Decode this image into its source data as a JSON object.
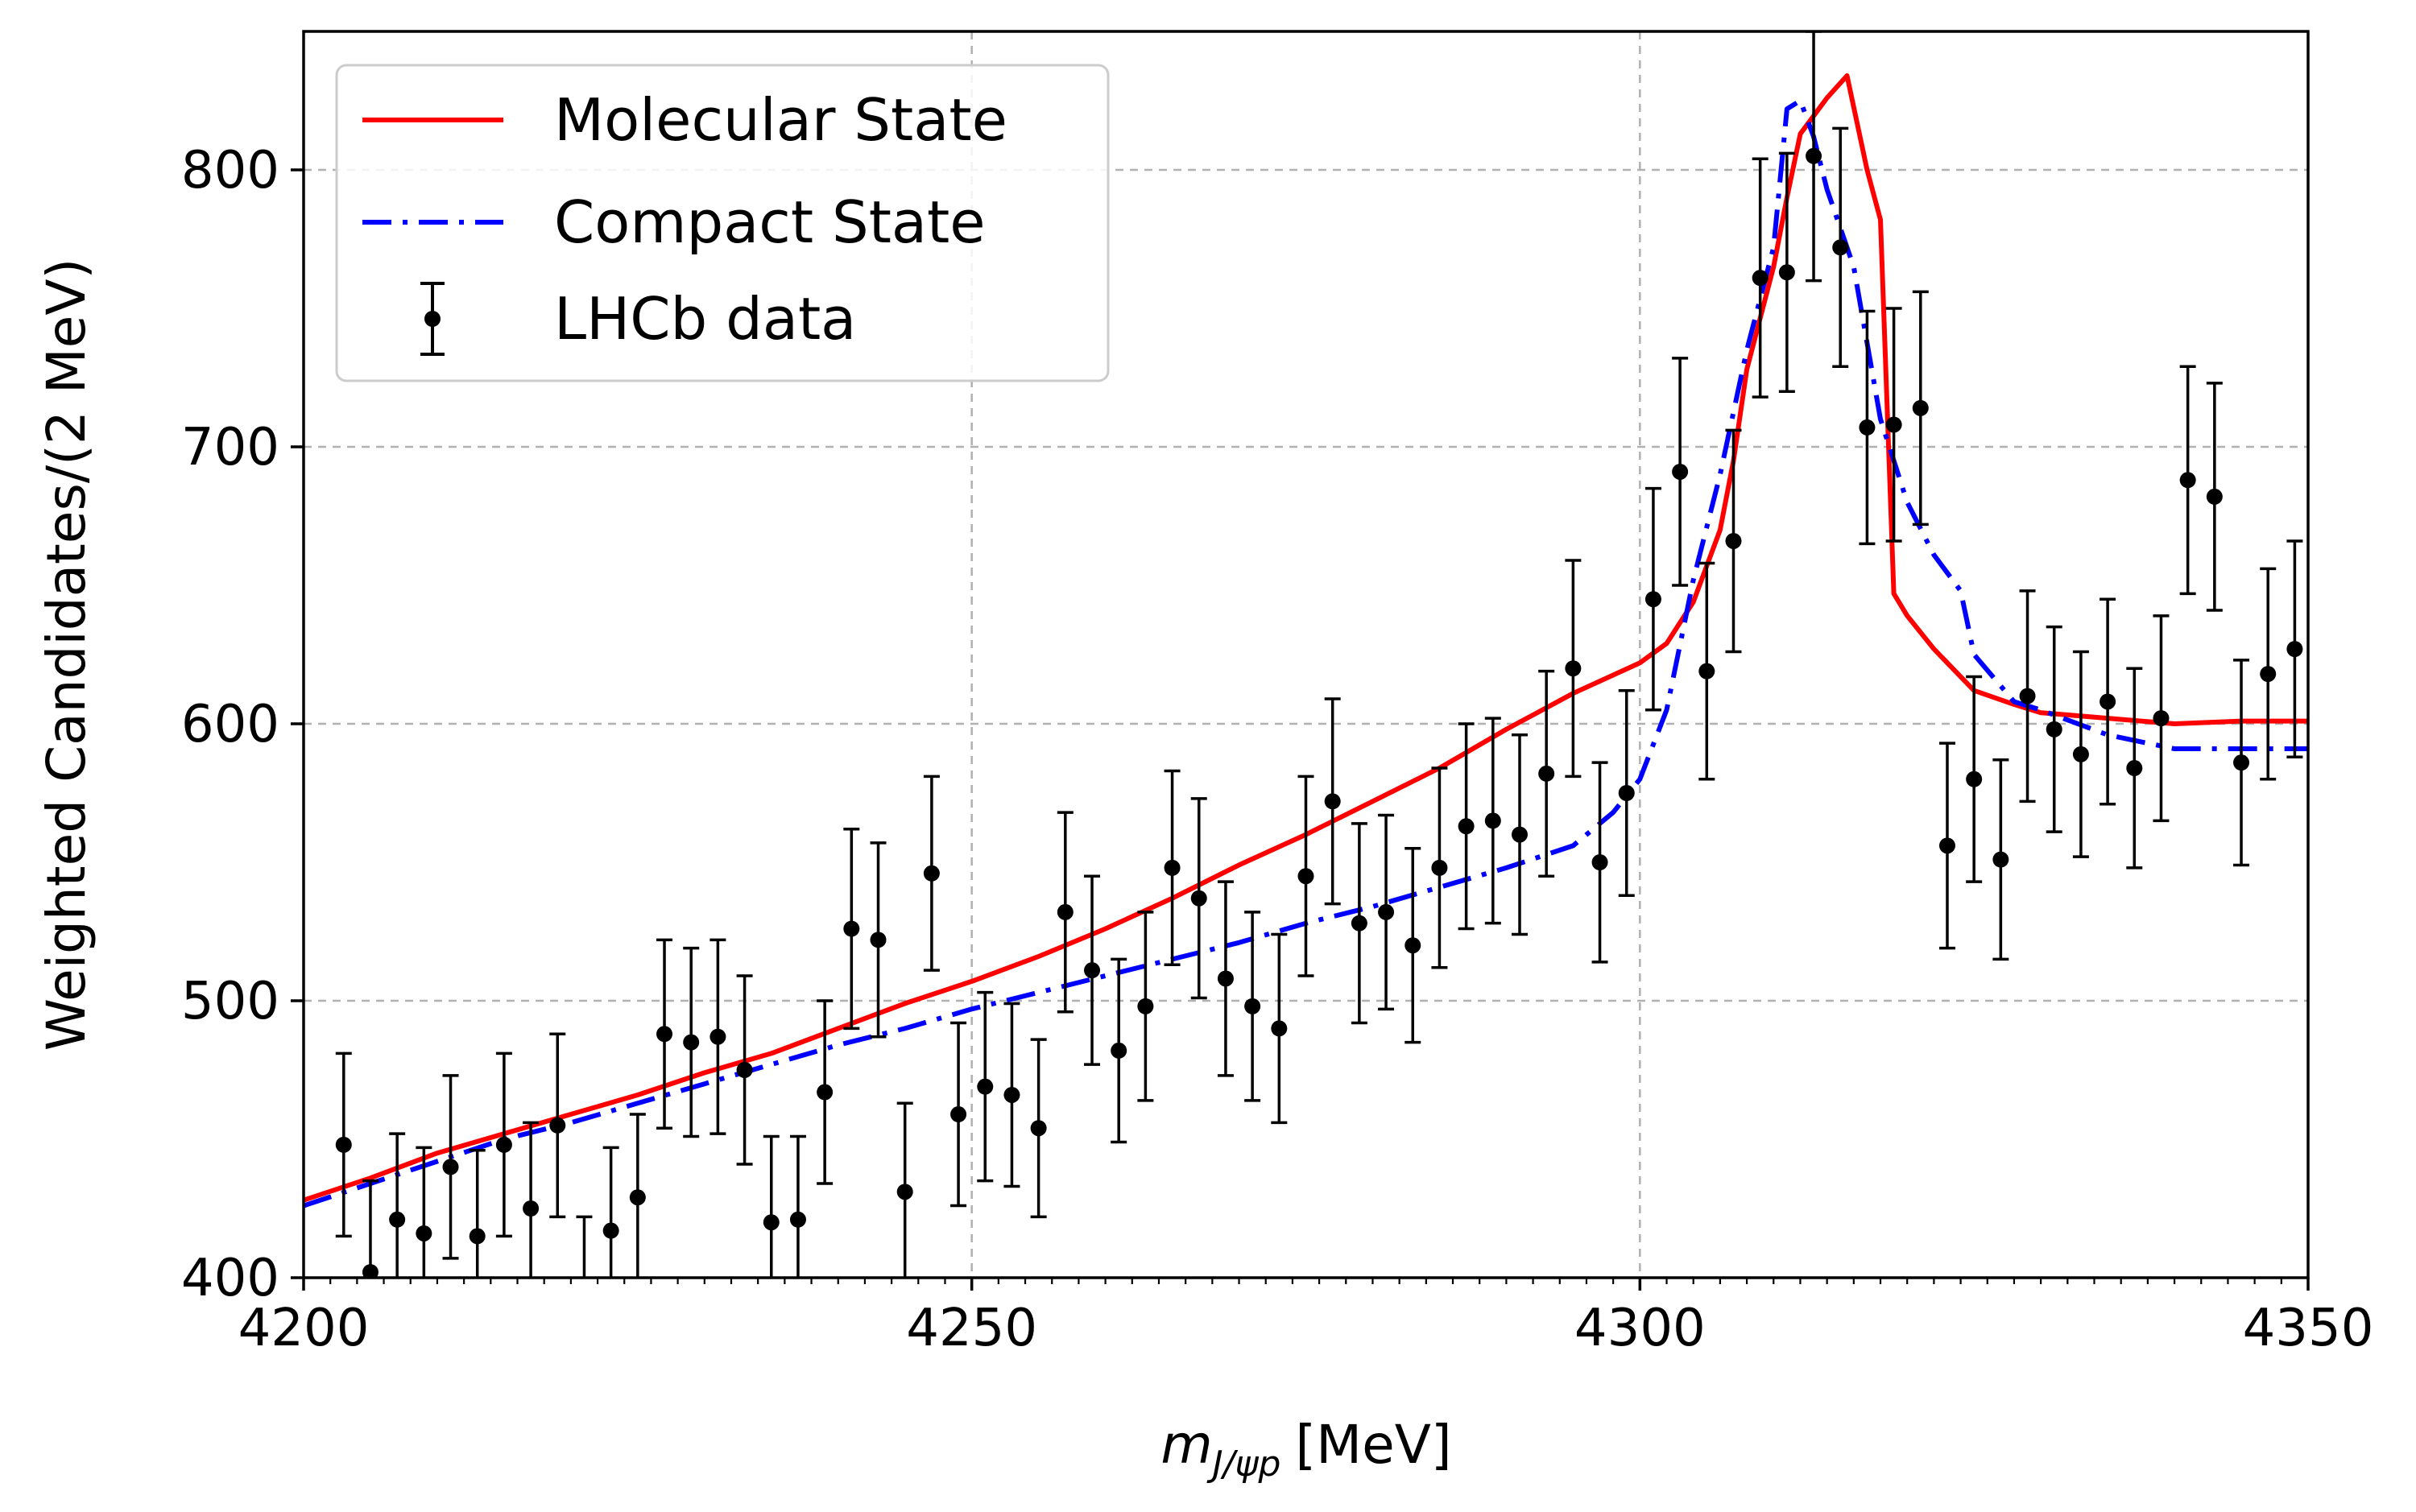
{
  "chart_data": {
    "type": "line",
    "xlabel": "m_{J/ψp} [MeV]",
    "xlabel_main": "m",
    "xlabel_sub": "J/ψp",
    "xlabel_unit": "[MeV]",
    "ylabel": "Weighted Candidates/(2 MeV)",
    "xlim": [
      4200,
      4350
    ],
    "ylim": [
      400,
      850
    ],
    "x_ticks": [
      4200,
      4250,
      4300,
      4350
    ],
    "x_tick_labels": [
      "4200",
      "4250",
      "4300",
      "4350"
    ],
    "y_ticks": [
      400,
      500,
      600,
      700,
      800
    ],
    "y_tick_labels": [
      "400",
      "500",
      "600",
      "700",
      "800"
    ],
    "x_minor_step": 2,
    "grid": true,
    "legend_position": "top-left",
    "series": [
      {
        "name": "Molecular State",
        "kind": "line",
        "style": "solid",
        "color": "#ff0000",
        "x": [
          4200,
          4205,
          4210,
          4215,
          4220,
          4225,
          4230,
          4235,
          4240,
          4245,
          4250,
          4255,
          4260,
          4265,
          4270,
          4275,
          4280,
          4285,
          4290,
          4295,
          4300,
          4302,
          4304,
          4306,
          4307,
          4308,
          4310,
          4311,
          4312,
          4314,
          4315.5,
          4317,
          4318,
          4319,
          4320,
          4322,
          4325,
          4328,
          4330,
          4335,
          4340,
          4345,
          4350
        ],
        "y": [
          428,
          436,
          445,
          452,
          459,
          466,
          474,
          481,
          490,
          499,
          507,
          516,
          526,
          537,
          549,
          560,
          572,
          584,
          598,
          611,
          622,
          629,
          644,
          670,
          695,
          728,
          765,
          790,
          813,
          826,
          834,
          800,
          782,
          647,
          639,
          627,
          612,
          607,
          604,
          602,
          600,
          601,
          601
        ]
      },
      {
        "name": "Compact State",
        "kind": "line",
        "style": "dashdot",
        "color": "#0000ff",
        "x": [
          4200,
          4205,
          4210,
          4215,
          4220,
          4225,
          4230,
          4235,
          4240,
          4245,
          4250,
          4255,
          4260,
          4265,
          4270,
          4275,
          4280,
          4285,
          4290,
          4295,
          4298,
          4300,
          4302,
          4304,
          4306,
          4308,
          4310,
          4311,
          4312,
          4313,
          4314,
          4316,
          4318,
          4320,
          4322,
          4324,
          4325,
          4328,
          4330,
          4335,
          4340,
          4345,
          4350
        ],
        "y": [
          426,
          434,
          442,
          450,
          456,
          463,
          470,
          477,
          484,
          490,
          497,
          503,
          509,
          515,
          521,
          528,
          534,
          541,
          548,
          556,
          568,
          580,
          605,
          652,
          690,
          735,
          772,
          822,
          825,
          812,
          793,
          765,
          710,
          680,
          661,
          648,
          625,
          608,
          605,
          596,
          591,
          591,
          591
        ]
      },
      {
        "name": "LHCb data",
        "kind": "errorbar",
        "color": "#000000",
        "x": [
          4203,
          4205,
          4207,
          4209,
          4211,
          4213,
          4215,
          4217,
          4219,
          4221,
          4223,
          4225,
          4227,
          4229,
          4231,
          4233,
          4235,
          4237,
          4239,
          4241,
          4243,
          4245,
          4247,
          4249,
          4251,
          4253,
          4255,
          4257,
          4259,
          4261,
          4263,
          4265,
          4267,
          4269,
          4271,
          4273,
          4275,
          4277,
          4279,
          4281,
          4283,
          4285,
          4287,
          4289,
          4291,
          4293,
          4295,
          4297,
          4299,
          4301,
          4303,
          4305,
          4307,
          4309,
          4311,
          4313,
          4315,
          4317,
          4319,
          4321,
          4323,
          4325,
          4327,
          4329,
          4331,
          4333,
          4335,
          4337,
          4339,
          4341,
          4343,
          4345,
          4347,
          4349
        ],
        "y": [
          448,
          402,
          421,
          416,
          440,
          415,
          448,
          425,
          455,
          387,
          417,
          429,
          488,
          485,
          487,
          475,
          420,
          421,
          467,
          526,
          522,
          431,
          546,
          459,
          469,
          466,
          454,
          532,
          511,
          482,
          498,
          548,
          537,
          508,
          498,
          490,
          545,
          572,
          528,
          532,
          520,
          548,
          563,
          565,
          560,
          582,
          620,
          550,
          575,
          645,
          691,
          619,
          666,
          761,
          763,
          805,
          772,
          707,
          708,
          714,
          556,
          580,
          551,
          610,
          598,
          589,
          608,
          584,
          602,
          688,
          682,
          586,
          618,
          627
        ],
        "err": [
          33,
          33,
          31,
          31,
          33,
          31,
          33,
          31,
          33,
          35,
          30,
          30,
          34,
          34,
          35,
          34,
          31,
          30,
          33,
          36,
          35,
          32,
          35,
          33,
          34,
          33,
          32,
          36,
          34,
          33,
          34,
          35,
          36,
          35,
          34,
          34,
          36,
          37,
          36,
          35,
          35,
          36,
          37,
          37,
          36,
          37,
          39,
          36,
          37,
          40,
          41,
          39,
          40,
          43,
          43,
          45,
          43,
          42,
          42,
          42,
          37,
          37,
          36,
          38,
          37,
          37,
          37,
          36,
          37,
          41,
          41,
          37,
          38,
          39
        ]
      }
    ]
  }
}
